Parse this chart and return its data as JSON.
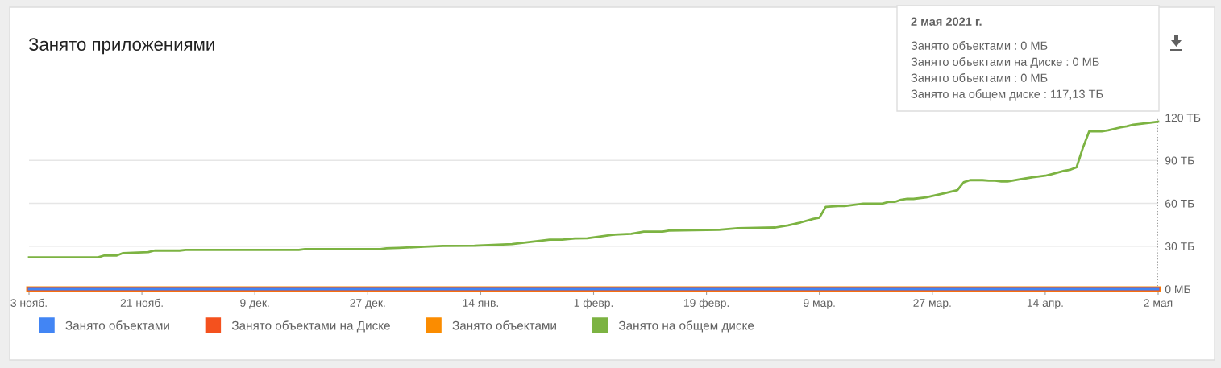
{
  "chart_data": {
    "type": "line",
    "title": "Занято приложениями",
    "xlim": [
      "2020-11-03",
      "2021-05-02"
    ],
    "xticks": [
      {
        "value": "2020-11-03",
        "label": "3 нояб."
      },
      {
        "value": "2020-11-21",
        "label": "21 нояб."
      },
      {
        "value": "2020-12-09",
        "label": "9 дек."
      },
      {
        "value": "2020-12-27",
        "label": "27 дек."
      },
      {
        "value": "2021-01-14",
        "label": "14 янв."
      },
      {
        "value": "2021-02-01",
        "label": "1 февр."
      },
      {
        "value": "2021-02-19",
        "label": "19 февр."
      },
      {
        "value": "2021-03-09",
        "label": "9 мар."
      },
      {
        "value": "2021-03-27",
        "label": "27 мар."
      },
      {
        "value": "2021-04-14",
        "label": "14 апр."
      },
      {
        "value": "2021-05-02",
        "label": "2 мая"
      }
    ],
    "ylim": [
      0,
      120
    ],
    "yticks": [
      {
        "value": 0,
        "label": "0 МБ"
      },
      {
        "value": 30,
        "label": "30 ТБ"
      },
      {
        "value": 60,
        "label": "60 ТБ"
      },
      {
        "value": 90,
        "label": "90 ТБ"
      },
      {
        "value": 120,
        "label": "120 ТБ"
      }
    ],
    "grid": "y",
    "legend": "bottom",
    "marker": "none",
    "line_style": "solid",
    "series": [
      {
        "name": "Занято объектами",
        "color": "#4285f4",
        "x": [
          "2020-11-03",
          "2021-05-02"
        ],
        "values": [
          0,
          0
        ]
      },
      {
        "name": "Занято объектами на Диске",
        "color": "#f4511e",
        "x": [
          "2020-11-03",
          "2021-05-02"
        ],
        "values": [
          0,
          0
        ]
      },
      {
        "name": "Занято объектами",
        "color": "#fb8c00",
        "x": [
          "2020-11-03",
          "2021-05-02"
        ],
        "values": [
          0,
          0
        ]
      },
      {
        "name": "Занято на общем диске",
        "color": "#7cb342",
        "x": [
          "2020-11-03",
          "2020-11-14",
          "2020-11-15",
          "2020-11-17",
          "2020-11-18",
          "2020-11-22",
          "2020-11-23",
          "2020-11-27",
          "2020-11-28",
          "2020-12-16",
          "2020-12-17",
          "2020-12-29",
          "2020-12-30",
          "2021-01-01",
          "2021-01-05",
          "2021-01-08",
          "2021-01-13",
          "2021-01-16",
          "2021-01-19",
          "2021-01-25",
          "2021-01-27",
          "2021-01-29",
          "2021-01-31",
          "2021-02-04",
          "2021-02-07",
          "2021-02-09",
          "2021-02-12",
          "2021-02-13",
          "2021-02-21",
          "2021-02-24",
          "2021-03-02",
          "2021-03-04",
          "2021-03-06",
          "2021-03-08",
          "2021-03-09",
          "2021-03-10",
          "2021-03-12",
          "2021-03-13",
          "2021-03-16",
          "2021-03-19",
          "2021-03-20",
          "2021-03-21",
          "2021-03-22",
          "2021-03-23",
          "2021-03-24",
          "2021-03-26",
          "2021-03-28",
          "2021-03-29",
          "2021-03-31",
          "2021-04-01",
          "2021-04-02",
          "2021-04-04",
          "2021-04-05",
          "2021-04-06",
          "2021-04-07",
          "2021-04-08",
          "2021-04-10",
          "2021-04-12",
          "2021-04-14",
          "2021-04-15",
          "2021-04-17",
          "2021-04-18",
          "2021-04-19",
          "2021-04-20",
          "2021-04-21",
          "2021-04-23",
          "2021-04-24",
          "2021-04-26",
          "2021-04-27",
          "2021-04-28",
          "2021-05-01",
          "2021-05-02"
        ],
        "values": [
          22.2,
          22.2,
          23.5,
          23.5,
          25.2,
          25.9,
          26.9,
          26.9,
          27.4,
          27.4,
          28.0,
          28.0,
          28.5,
          28.8,
          29.6,
          30.2,
          30.4,
          30.9,
          31.5,
          34.6,
          34.6,
          35.4,
          35.6,
          38.0,
          38.7,
          40.2,
          40.2,
          40.9,
          41.5,
          42.6,
          43.1,
          44.6,
          46.6,
          49.1,
          49.9,
          57.5,
          58.1,
          58.1,
          59.8,
          59.8,
          61.0,
          61.0,
          62.5,
          63.1,
          63.1,
          64.2,
          66.1,
          67.1,
          69.2,
          74.7,
          76.2,
          76.2,
          75.9,
          75.9,
          75.3,
          75.3,
          76.8,
          78.2,
          79.3,
          80.4,
          82.7,
          83.5,
          85.2,
          98.8,
          110.3,
          110.3,
          111.0,
          113.1,
          113.9,
          115.0,
          116.6,
          117.13
        ]
      }
    ],
    "ref_lines": [
      {
        "axis": "x",
        "value": "2021-05-02",
        "color": "#757575",
        "line_style": "dotted"
      }
    ],
    "annotations": [
      "2 мая 2021 г.",
      "Занято объектами : 0 МБ",
      "Занято объектами на Диске : 0 МБ",
      "Занято объектами : 0 МБ",
      "Занято на общем диске : 117,13 ТБ"
    ]
  }
}
